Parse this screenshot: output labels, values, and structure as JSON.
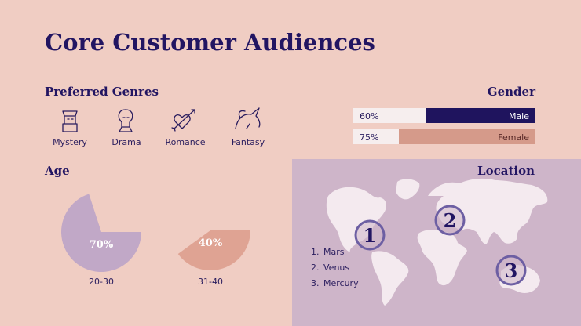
{
  "title": "Core Customer Audiences",
  "genres": {
    "heading": "Preferred Genres",
    "items": [
      "Mystery",
      "Drama",
      "Romance",
      "Fantasy"
    ]
  },
  "gender": {
    "heading": "Gender",
    "items": [
      {
        "label": "60%",
        "value": 60,
        "name": "Male",
        "color": "#1f145e"
      },
      {
        "label": "75%",
        "value": 75,
        "name": "Female",
        "color": "#d59a8a"
      }
    ]
  },
  "age": {
    "heading": "Age",
    "items": [
      {
        "label": "70%",
        "value": 70,
        "name": "20-30",
        "color": "#c1a8c7"
      },
      {
        "label": "40%",
        "value": 40,
        "name": "31-40",
        "color": "#dfa393"
      }
    ]
  },
  "location": {
    "heading": "Location",
    "list": [
      {
        "number": "1.",
        "name": "Mars"
      },
      {
        "number": "2.",
        "name": "Venus"
      },
      {
        "number": "3.",
        "name": "Mercury"
      }
    ],
    "markers": [
      "1",
      "2",
      "3"
    ]
  }
}
